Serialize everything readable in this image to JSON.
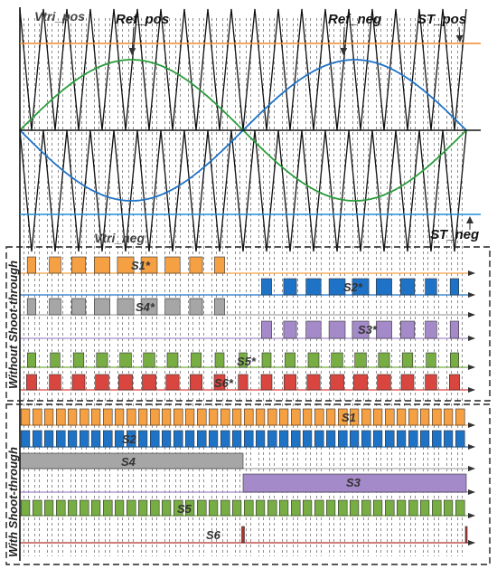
{
  "labels": {
    "vtri_pos": "Vtri_pos",
    "ref_pos": "Ref_pos",
    "ref_neg": "Ref_neg",
    "st_pos": "ST_pos",
    "vtri_neg": "Vtri_neg",
    "st_neg": "ST_neg"
  },
  "sections": {
    "without": "Without Shoot-through",
    "with": "With Shoot-through"
  },
  "signals_without": [
    {
      "name": "S1*",
      "color": "#f5a043"
    },
    {
      "name": "S2*",
      "color": "#1f73c6"
    },
    {
      "name": "S4*",
      "color": "#a6a6a6"
    },
    {
      "name": "S3*",
      "color": "#a58ac9"
    },
    {
      "name": "S5*",
      "color": "#77ad43"
    },
    {
      "name": "S6*",
      "color": "#d9453f"
    }
  ],
  "signals_with": [
    {
      "name": "S1",
      "color": "#f5a043"
    },
    {
      "name": "S2",
      "color": "#1f73c6"
    },
    {
      "name": "S4",
      "color": "#a6a6a6"
    },
    {
      "name": "S3",
      "color": "#a58ac9"
    },
    {
      "name": "S5",
      "color": "#77ad43"
    },
    {
      "name": "S6",
      "color": "#b3312b"
    }
  ],
  "colors": {
    "carrier": "#111111",
    "ref_pos": "#2a9d3c",
    "ref_neg": "#1f73c6",
    "st_pos": "#f08a2c",
    "st_neg": "#1f8fd8"
  }
}
